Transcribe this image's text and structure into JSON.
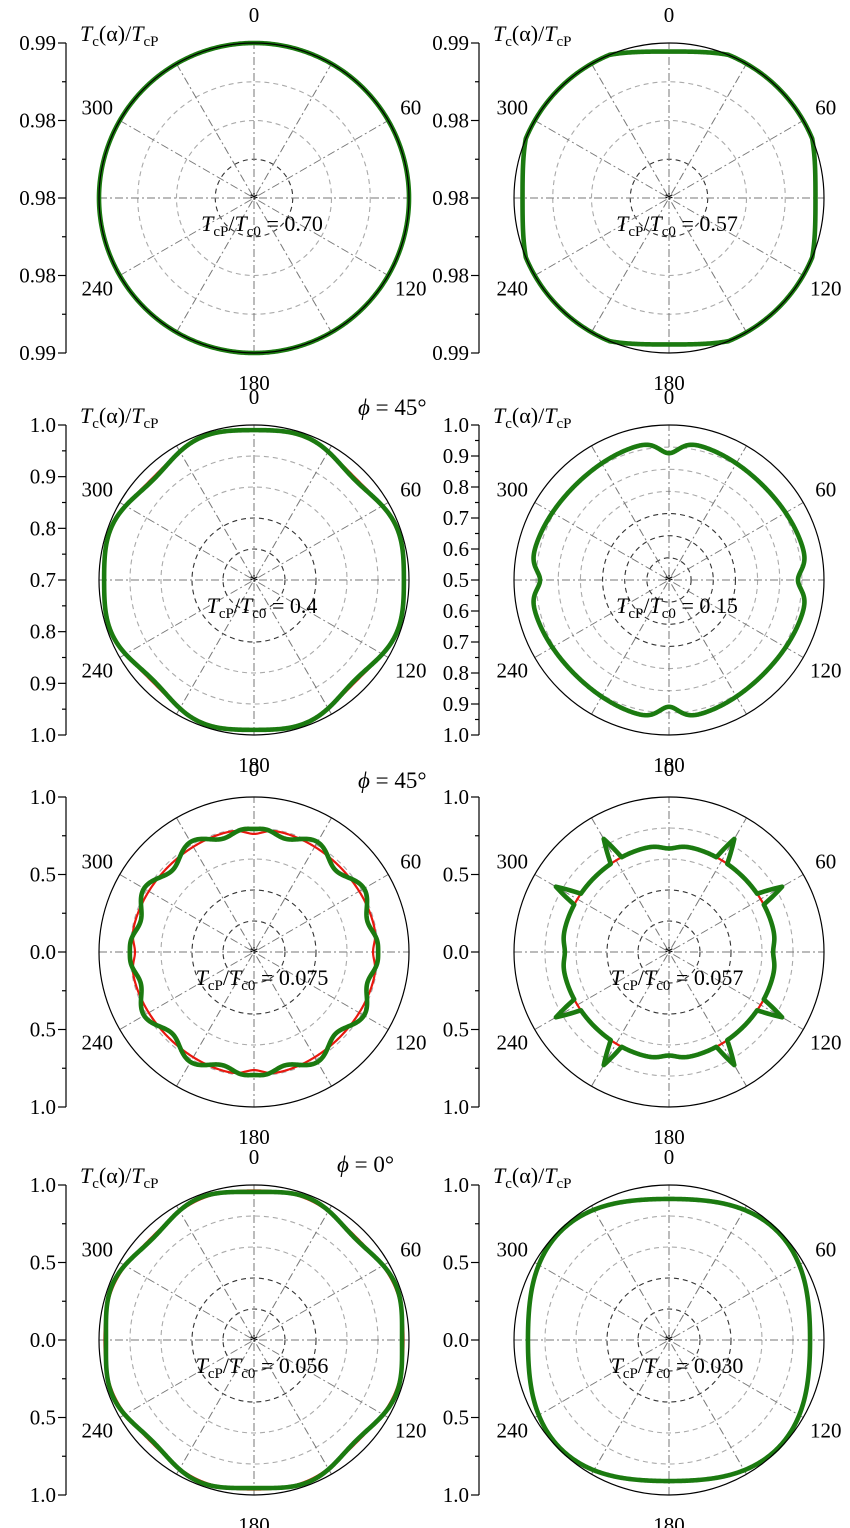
{
  "colors": {
    "series_a": "#e8170e",
    "series_b": "#1b7a10",
    "grid_dark": "#333333",
    "grid_light": "#aaaaaa"
  },
  "chart_data": [
    {
      "type": "polar",
      "radial_label_main": "T",
      "radial_label_sub": "c",
      "radial_label_arg": "(α)/",
      "radial_label_den": "T",
      "radial_label_den_sub": "cP",
      "radial_ticks": [
        "0.99",
        "0.98",
        "0.98",
        "0.98",
        "0.99"
      ],
      "angle_labels": [
        "0",
        "60",
        "120",
        "180",
        "240",
        "300"
      ],
      "annotation": {
        "lhs": "T",
        "lhs_sub": "cP",
        "slash": "/",
        "rhs": "T",
        "rhs_sub": "c0",
        "value": " = 0.70"
      },
      "phi_label": "",
      "ring_count": 3,
      "inner_dark_rings": 1,
      "series": [
        {
          "amp": 1.0,
          "a4": 0.0,
          "a8": 0.0,
          "a12": 0.0,
          "dip": 0.0,
          "spikes": 0.0
        },
        {
          "amp": 1.0,
          "a4": 0.0,
          "a8": 0.0,
          "a12": 0.0,
          "dip": 0.0,
          "spikes": 0.0
        }
      ]
    },
    {
      "type": "polar",
      "radial_label_main": "T",
      "radial_label_sub": "c",
      "radial_label_arg": "(α)/",
      "radial_label_den": "T",
      "radial_label_den_sub": "cP",
      "radial_ticks": [
        "0.99",
        "0.98",
        "0.98",
        "0.98",
        "0.99"
      ],
      "angle_labels": [
        "0",
        "60",
        "120",
        "180",
        "240",
        "300"
      ],
      "annotation": {
        "lhs": "T",
        "lhs_sub": "cP",
        "slash": "/",
        "rhs": "T",
        "rhs_sub": "c0",
        "value": " = 0.57"
      },
      "phi_label": "",
      "ring_count": 3,
      "inner_dark_rings": 1,
      "series": [
        {
          "amp": 1.0,
          "a4": -0.055,
          "a8": 0.0,
          "a12": 0.0,
          "dip": 0.0,
          "spikes": 0.0
        },
        {
          "amp": 1.0,
          "a4": -0.055,
          "a8": 0.0,
          "a12": 0.0,
          "dip": 0.0,
          "spikes": 0.0
        }
      ]
    },
    {
      "type": "polar",
      "radial_label_main": "T",
      "radial_label_sub": "c",
      "radial_label_arg": "(α)/",
      "radial_label_den": "T",
      "radial_label_den_sub": "cP",
      "radial_ticks": [
        "1.0",
        "0.9",
        "0.8",
        "0.7",
        "0.8",
        "0.9",
        "1.0"
      ],
      "angle_labels": [
        "0",
        "60",
        "120",
        "180",
        "240",
        "300"
      ],
      "annotation": {
        "lhs": "T",
        "lhs_sub": "cP",
        "slash": "/",
        "rhs": "T",
        "rhs_sub": "c0",
        "value": " = 0.4"
      },
      "phi_label": "",
      "ring_count": 4,
      "inner_dark_rings": 2,
      "series": [
        {
          "amp": 0.96,
          "a4": 0.02,
          "a8": -0.012,
          "a12": 0.0,
          "dip": 0.0,
          "spikes": 0.0
        },
        {
          "amp": 0.96,
          "a4": 0.025,
          "a8": -0.018,
          "a12": 0.0,
          "dip": 0.0,
          "spikes": 0.0
        }
      ]
    },
    {
      "type": "polar",
      "radial_label_main": "T",
      "radial_label_sub": "c",
      "radial_label_arg": "(α)/",
      "radial_label_den": "T",
      "radial_label_den_sub": "cP",
      "radial_ticks": [
        "1.0",
        "0.9",
        "0.8",
        "0.7",
        "0.6",
        "0.5",
        "0.6",
        "0.7",
        "0.8",
        "0.9",
        "1.0"
      ],
      "angle_labels": [
        "0",
        "60",
        "120",
        "180",
        "240",
        "300"
      ],
      "annotation": {
        "lhs": "T",
        "lhs_sub": "cP",
        "slash": "/",
        "rhs": "T",
        "rhs_sub": "c0",
        "value": " = 0.15"
      },
      "phi_label": "",
      "ring_count": 6,
      "inner_dark_rings": 3,
      "series": [
        {
          "amp": 0.86,
          "a4": 0.0,
          "a8": 0.0,
          "a12": 0.0,
          "dip": 0.14,
          "spikes": 0.0
        },
        {
          "amp": 0.86,
          "a4": 0.0,
          "a8": 0.0,
          "a12": 0.0,
          "dip": 0.14,
          "spikes": 0.0
        }
      ]
    },
    {
      "type": "polar",
      "radial_label_main": "",
      "radial_label_sub": "",
      "radial_label_arg": "",
      "radial_label_den": "",
      "radial_label_den_sub": "",
      "radial_ticks": [
        "1.0",
        "0.5",
        "0.0",
        "0.5",
        "1.0"
      ],
      "angle_labels": [
        "0",
        "60",
        "120",
        "180",
        "240",
        "300"
      ],
      "annotation": {
        "lhs": "T",
        "lhs_sub": "cP",
        "slash": "/",
        "rhs": "T",
        "rhs_sub": "c0",
        "value": " = 0.075"
      },
      "phi_label": "",
      "ring_count": 4,
      "inner_dark_rings": 2,
      "series": [
        {
          "amp": 0.78,
          "a4": 0.0,
          "a8": 0.0,
          "a12": 0.0,
          "dip": 0.06,
          "spikes": 0.0
        },
        {
          "amp": 0.78,
          "a4": 0.0,
          "a8": 0.0,
          "a12": 0.035,
          "dip": 0.07,
          "spikes": 0.0
        }
      ]
    },
    {
      "type": "polar",
      "radial_label_main": "",
      "radial_label_sub": "",
      "radial_label_arg": "",
      "radial_label_den": "",
      "radial_label_den_sub": "",
      "radial_ticks": [
        "1.0",
        "0.5",
        "0.0",
        "0.5",
        "1.0"
      ],
      "angle_labels": [
        "0",
        "60",
        "120",
        "180",
        "240",
        "300"
      ],
      "annotation": {
        "lhs": "T",
        "lhs_sub": "cP",
        "slash": "/",
        "rhs": "T",
        "rhs_sub": "c0",
        "value": " = 0.057"
      },
      "phi_label": "",
      "ring_count": 4,
      "inner_dark_rings": 2,
      "series": [
        {
          "amp": 0.68,
          "a4": 0.0,
          "a8": 0.0,
          "a12": 0.0,
          "dip": 0.04,
          "spikes": 0.0
        },
        {
          "amp": 0.68,
          "a4": 0.0,
          "a8": 0.0,
          "a12": 0.0,
          "dip": 0.04,
          "spikes": 0.16
        }
      ]
    },
    {
      "type": "polar",
      "radial_label_main": "T",
      "radial_label_sub": "c",
      "radial_label_arg": "(α)/",
      "radial_label_den": "T",
      "radial_label_den_sub": "cP",
      "radial_ticks": [
        "1.0",
        "0.5",
        "0.0",
        "0.5",
        "1.0"
      ],
      "angle_labels": [
        "0",
        "60",
        "120",
        "180",
        "240",
        "300"
      ],
      "annotation": {
        "lhs": "T",
        "lhs_sub": "cP",
        "slash": "/",
        "rhs": "T",
        "rhs_sub": "c0",
        "value": " = 0.056"
      },
      "phi_label": "",
      "ring_count": 4,
      "inner_dark_rings": 2,
      "series": [
        {
          "amp": 0.96,
          "a4": 0.015,
          "a8": -0.01,
          "a12": 0.0,
          "dip": 0.0,
          "spikes": 0.0
        },
        {
          "amp": 0.96,
          "a4": 0.015,
          "a8": -0.02,
          "a12": 0.0,
          "dip": 0.0,
          "spikes": 0.0
        }
      ]
    },
    {
      "type": "polar",
      "radial_label_main": "T",
      "radial_label_sub": "c",
      "radial_label_arg": "(α)/",
      "radial_label_den": "T",
      "radial_label_den_sub": "cP",
      "radial_ticks": [
        "1.0",
        "0.5",
        "0.0",
        "0.5",
        "1.0"
      ],
      "angle_labels": [
        "0",
        "60",
        "120",
        "180",
        "240",
        "300"
      ],
      "annotation": {
        "lhs": "T",
        "lhs_sub": "cP",
        "slash": "/",
        "rhs": "T",
        "rhs_sub": "c0",
        "value": " = 0.030"
      },
      "phi_label": "",
      "ring_count": 4,
      "inner_dark_rings": 2,
      "series": [
        {
          "amp": 0.95,
          "a4": -0.04,
          "a8": 0.0,
          "a12": 0.0,
          "dip": 0.0,
          "spikes": 0.0
        },
        {
          "amp": 0.95,
          "a4": -0.04,
          "a8": 0.0,
          "a12": 0.0,
          "dip": 0.0,
          "spikes": 0.0
        }
      ]
    }
  ],
  "phi_labels": [
    {
      "symbol": "ϕ",
      "text": " = 45°"
    },
    {
      "symbol": "ϕ",
      "text": " = 45°"
    },
    {
      "symbol": "ϕ",
      "text": " = 0°"
    }
  ]
}
